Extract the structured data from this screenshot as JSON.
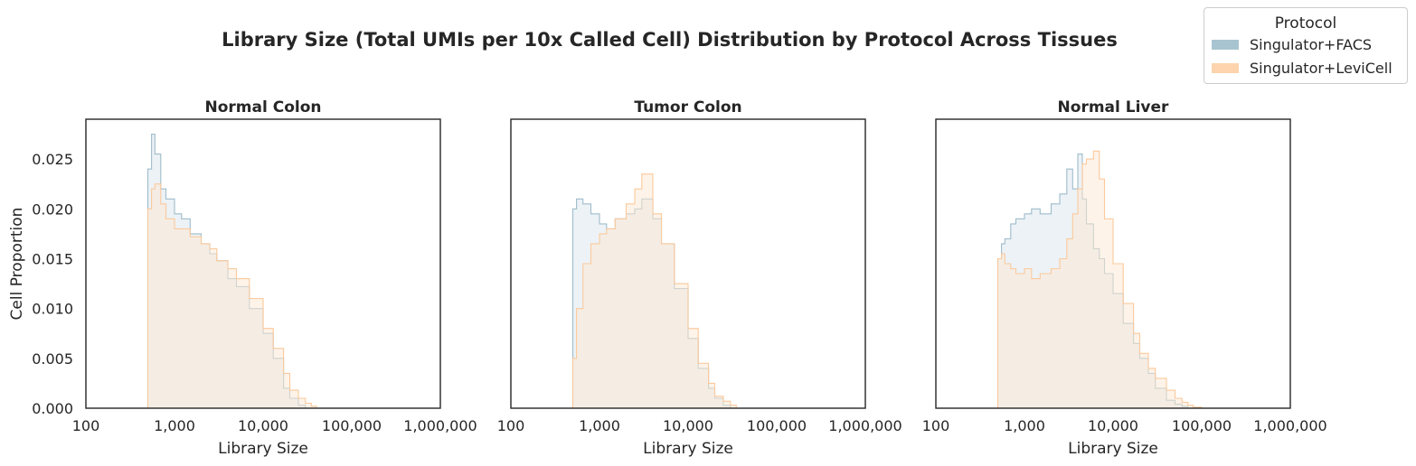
{
  "figure_title": "Library Size (Total UMIs per 10x Called Cell) Distribution by Protocol Across Tissues",
  "legend": {
    "title": "Protocol",
    "items": [
      {
        "label": "Singulator+FACS",
        "color": "#a8c4d0"
      },
      {
        "label": "Singulator+LeviCell",
        "color": "#fdd4ad"
      }
    ]
  },
  "colors": {
    "facs_line": "#9fbccb",
    "facs_fill": "#dce8ee",
    "levi_line": "#fbc99c",
    "levi_fill": "#fde7d1"
  },
  "chart_data": [
    {
      "type": "area",
      "title": "Normal Colon",
      "xlabel": "Library Size",
      "ylabel": "Cell Proportion",
      "x_scale": "log",
      "xlim": [
        100,
        1000000
      ],
      "ylim": [
        0,
        0.029
      ],
      "x_ticks": [
        "100",
        "1,000",
        "10,000",
        "100,000",
        "1,000,000"
      ],
      "y_ticks": [
        "0.000",
        "0.005",
        "0.010",
        "0.015",
        "0.020",
        "0.025"
      ],
      "grid": false,
      "series": [
        {
          "name": "Singulator+FACS",
          "x": [
            500,
            550,
            600,
            700,
            800,
            1000,
            1200,
            1500,
            2000,
            2500,
            3000,
            4000,
            5000,
            7000,
            10000,
            13000,
            17000,
            20000,
            25000,
            30000
          ],
          "y": [
            0.024,
            0.0275,
            0.0255,
            0.022,
            0.021,
            0.0195,
            0.019,
            0.0175,
            0.0165,
            0.0155,
            0.0148,
            0.013,
            0.0122,
            0.01,
            0.0075,
            0.005,
            0.002,
            0.001,
            0.0003,
            0
          ]
        },
        {
          "name": "Singulator+LeviCell",
          "x": [
            500,
            550,
            600,
            700,
            800,
            1000,
            1200,
            1500,
            2000,
            2500,
            3000,
            4000,
            5000,
            7000,
            10000,
            13000,
            17000,
            20000,
            25000,
            30000,
            35000,
            40000
          ],
          "y": [
            0.02,
            0.022,
            0.0225,
            0.0205,
            0.019,
            0.018,
            0.018,
            0.0172,
            0.0165,
            0.016,
            0.0148,
            0.014,
            0.013,
            0.011,
            0.008,
            0.006,
            0.0035,
            0.0018,
            0.001,
            0.0005,
            0.0002,
            0
          ]
        }
      ]
    },
    {
      "type": "area",
      "title": "Tumor Colon",
      "xlabel": "Library Size",
      "ylabel": "",
      "x_scale": "log",
      "xlim": [
        100,
        1000000
      ],
      "ylim": [
        0,
        0.029
      ],
      "x_ticks": [
        "100",
        "1,000",
        "10,000",
        "100,000",
        "1,000,000"
      ],
      "y_ticks": [],
      "grid": false,
      "series": [
        {
          "name": "Singulator+FACS",
          "x": [
            500,
            550,
            650,
            800,
            1000,
            1200,
            1500,
            2000,
            2500,
            3000,
            4000,
            5000,
            7000,
            10000,
            13000,
            17000,
            20000,
            25000,
            30000
          ],
          "y": [
            0.02,
            0.021,
            0.0205,
            0.0195,
            0.0185,
            0.018,
            0.019,
            0.0195,
            0.02,
            0.021,
            0.019,
            0.0165,
            0.012,
            0.007,
            0.004,
            0.002,
            0.001,
            0.0003,
            0
          ]
        },
        {
          "name": "Singulator+LeviCell",
          "x": [
            500,
            550,
            650,
            800,
            1000,
            1200,
            1500,
            2000,
            2500,
            3000,
            4000,
            5000,
            7000,
            10000,
            13000,
            17000,
            20000,
            25000,
            30000,
            35000
          ],
          "y": [
            0.005,
            0.01,
            0.0145,
            0.0165,
            0.0175,
            0.018,
            0.019,
            0.0205,
            0.022,
            0.0235,
            0.0195,
            0.0165,
            0.0125,
            0.008,
            0.0045,
            0.0025,
            0.0012,
            0.0007,
            0.0003,
            0
          ]
        }
      ]
    },
    {
      "type": "area",
      "title": "Normal Liver",
      "xlabel": "Library Size",
      "ylabel": "",
      "x_scale": "log",
      "xlim": [
        100,
        1000000
      ],
      "ylim": [
        0,
        0.029
      ],
      "x_ticks": [
        "100",
        "1,000",
        "10,000",
        "100,000",
        "1,000,000"
      ],
      "y_ticks": [],
      "grid": false,
      "series": [
        {
          "name": "Singulator+FACS",
          "x": [
            500,
            550,
            600,
            700,
            800,
            1000,
            1200,
            1500,
            2000,
            2500,
            3000,
            3500,
            4000,
            4500,
            5000,
            6000,
            7000,
            8000,
            10000,
            13000,
            17000,
            20000,
            25000,
            30000,
            40000,
            50000,
            60000,
            70000
          ],
          "y": [
            0.015,
            0.0165,
            0.017,
            0.0185,
            0.019,
            0.0195,
            0.02,
            0.0195,
            0.0205,
            0.0215,
            0.024,
            0.022,
            0.0255,
            0.021,
            0.0185,
            0.016,
            0.015,
            0.0135,
            0.0115,
            0.0085,
            0.0065,
            0.005,
            0.0035,
            0.002,
            0.0008,
            0.0004,
            0.0002,
            0
          ]
        },
        {
          "name": "Singulator+LeviCell",
          "x": [
            500,
            550,
            600,
            700,
            800,
            1000,
            1200,
            1500,
            2000,
            2500,
            3000,
            3500,
            4000,
            4500,
            5000,
            6000,
            7000,
            8000,
            10000,
            13000,
            17000,
            20000,
            25000,
            30000,
            40000,
            50000,
            60000,
            70000,
            80000,
            100000
          ],
          "y": [
            0.015,
            0.0155,
            0.0145,
            0.014,
            0.0135,
            0.014,
            0.013,
            0.0135,
            0.014,
            0.015,
            0.017,
            0.0195,
            0.022,
            0.0245,
            0.025,
            0.0258,
            0.023,
            0.019,
            0.0145,
            0.0105,
            0.0075,
            0.0055,
            0.004,
            0.003,
            0.0018,
            0.001,
            0.0006,
            0.0003,
            0.0001,
            0
          ]
        }
      ]
    }
  ]
}
